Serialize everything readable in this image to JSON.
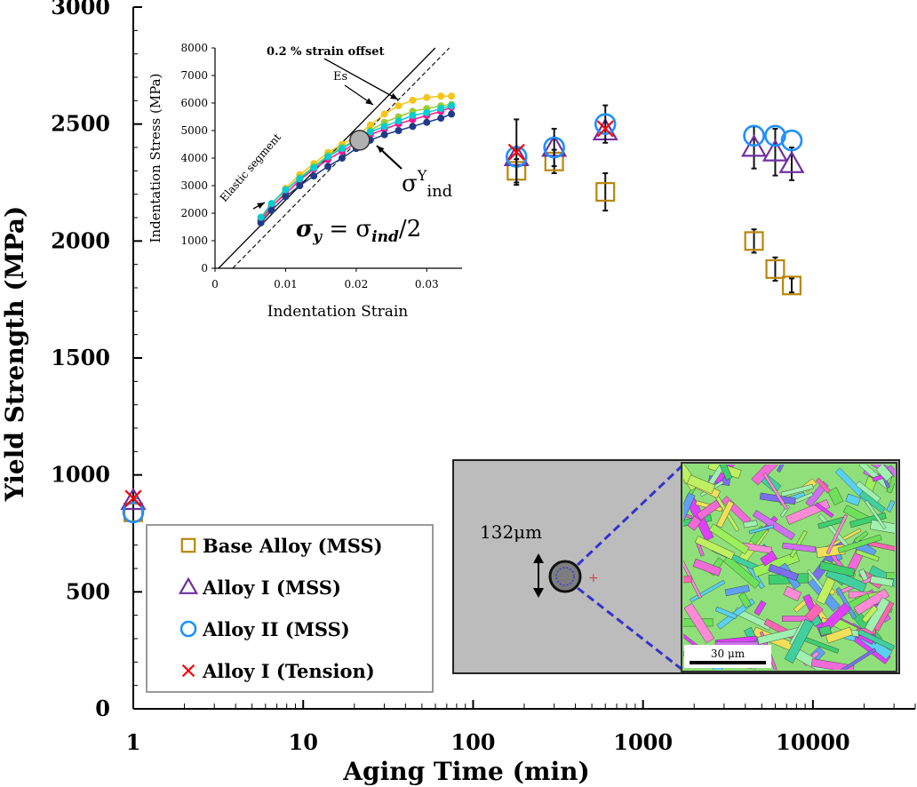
{
  "chart_data": {
    "type": "scatter",
    "title": "",
    "xlabel": "Aging Time (min)",
    "ylabel": "Yield Strength (MPa)",
    "x_scale": "log",
    "xlim": [
      1,
      40000
    ],
    "ylim": [
      0,
      3000
    ],
    "x_ticks": [
      {
        "value": 1,
        "label": "1"
      },
      {
        "value": 10,
        "label": "10"
      },
      {
        "value": 100,
        "label": "100"
      },
      {
        "value": 1000,
        "label": "1000"
      },
      {
        "value": 10000,
        "label": "10000"
      }
    ],
    "y_ticks": [
      {
        "value": 0,
        "label": "0"
      },
      {
        "value": 500,
        "label": "500"
      },
      {
        "value": 1000,
        "label": "1000"
      },
      {
        "value": 1500,
        "label": "1500"
      },
      {
        "value": 2000,
        "label": "2000"
      },
      {
        "value": 2500,
        "label": "2500"
      },
      {
        "value": 3000,
        "label": "3000"
      }
    ],
    "legend_position": "bottom-left",
    "series": [
      {
        "name": "Base Alloy (MSS)",
        "marker": "square",
        "color": "#b8860b",
        "points": [
          {
            "x": 1,
            "y": 840,
            "err": 0
          },
          {
            "x": 180,
            "y": 2300,
            "err": 50
          },
          {
            "x": 300,
            "y": 2340,
            "err": 50
          },
          {
            "x": 600,
            "y": 2210,
            "err": 80
          },
          {
            "x": 4500,
            "y": 2000,
            "err": 50
          },
          {
            "x": 6000,
            "y": 1880,
            "err": 50
          },
          {
            "x": 7500,
            "y": 1810,
            "err": 30
          }
        ]
      },
      {
        "name": "Alloy I (MSS)",
        "marker": "triangle",
        "color": "#7030a0",
        "points": [
          {
            "x": 1,
            "y": 890,
            "err": 0
          },
          {
            "x": 180,
            "y": 2360,
            "err": 0
          },
          {
            "x": 300,
            "y": 2400,
            "err": 0
          },
          {
            "x": 600,
            "y": 2470,
            "err": 0
          },
          {
            "x": 4500,
            "y": 2400,
            "err": 90
          },
          {
            "x": 6000,
            "y": 2380,
            "err": 100
          },
          {
            "x": 7500,
            "y": 2330,
            "err": 70
          }
        ]
      },
      {
        "name": "Alloy II (MSS)",
        "marker": "circle",
        "color": "#1e90ff",
        "points": [
          {
            "x": 1,
            "y": 840,
            "err": 0
          },
          {
            "x": 180,
            "y": 2360,
            "err": 0
          },
          {
            "x": 300,
            "y": 2400,
            "err": 80
          },
          {
            "x": 600,
            "y": 2500,
            "err": 80
          },
          {
            "x": 4500,
            "y": 2450,
            "err": 0
          },
          {
            "x": 6000,
            "y": 2450,
            "err": 0
          },
          {
            "x": 7500,
            "y": 2430,
            "err": 0
          }
        ]
      },
      {
        "name": "Alloy I (Tension)",
        "marker": "x",
        "color": "#ff0000",
        "points": [
          {
            "x": 1,
            "y": 900,
            "err": 0
          },
          {
            "x": 180,
            "y": 2380,
            "err": 140
          },
          {
            "x": 600,
            "y": 2480,
            "err": 0
          }
        ]
      }
    ],
    "inset_chart": {
      "type": "scatter",
      "xlabel": "Indentation Strain",
      "ylabel": "Indentation Stress (MPa)",
      "xlim": [
        0,
        0.035
      ],
      "ylim": [
        0,
        8000
      ],
      "x_ticks": [
        {
          "value": 0,
          "label": "0"
        },
        {
          "value": 0.01,
          "label": "0.01"
        },
        {
          "value": 0.02,
          "label": "0.02"
        },
        {
          "value": 0.03,
          "label": "0.03"
        }
      ],
      "y_ticks": [
        {
          "value": 0,
          "label": "0"
        },
        {
          "value": 1000,
          "label": "1000"
        },
        {
          "value": 2000,
          "label": "2000"
        },
        {
          "value": 3000,
          "label": "3000"
        },
        {
          "value": 4000,
          "label": "4000"
        },
        {
          "value": 5000,
          "label": "5000"
        },
        {
          "value": 6000,
          "label": "6000"
        },
        {
          "value": 7000,
          "label": "7000"
        },
        {
          "value": 8000,
          "label": "8000"
        }
      ],
      "annotations": {
        "offset_label": "0.2 % strain offset",
        "es_label": "Es",
        "elastic_label": "Elastic segment",
        "yield_sigma": "σ",
        "yield_sup": "Y",
        "yield_sub": "ind",
        "formula_lhs": "σ",
        "formula_lhs_sub": "y",
        "formula_rhs": " = σ",
        "formula_rhs_sub": "ind",
        "formula_tail": "/2"
      },
      "yield_point": {
        "x": 0.0205,
        "y": 4650
      },
      "curves": [
        {
          "color": "#f5c518",
          "points": [
            [
              0.0065,
              1800
            ],
            [
              0.008,
              2300
            ],
            [
              0.01,
              2900
            ],
            [
              0.012,
              3400
            ],
            [
              0.014,
              3800
            ],
            [
              0.016,
              4200
            ],
            [
              0.018,
              4500
            ],
            [
              0.02,
              4800
            ],
            [
              0.022,
              5200
            ],
            [
              0.024,
              5600
            ],
            [
              0.026,
              5900
            ],
            [
              0.028,
              6100
            ],
            [
              0.03,
              6200
            ],
            [
              0.032,
              6250
            ],
            [
              0.0335,
              6250
            ]
          ]
        },
        {
          "color": "#9acd32",
          "points": [
            [
              0.0065,
              1700
            ],
            [
              0.008,
              2200
            ],
            [
              0.01,
              2800
            ],
            [
              0.012,
              3300
            ],
            [
              0.014,
              3700
            ],
            [
              0.016,
              4100
            ],
            [
              0.018,
              4400
            ],
            [
              0.02,
              4650
            ],
            [
              0.022,
              5000
            ],
            [
              0.024,
              5300
            ],
            [
              0.026,
              5500
            ],
            [
              0.028,
              5700
            ],
            [
              0.03,
              5800
            ],
            [
              0.032,
              5900
            ],
            [
              0.0335,
              5950
            ]
          ]
        },
        {
          "color": "#ff1493",
          "points": [
            [
              0.0065,
              1750
            ],
            [
              0.008,
              2250
            ],
            [
              0.01,
              2700
            ],
            [
              0.012,
              3200
            ],
            [
              0.014,
              3600
            ],
            [
              0.016,
              3950
            ],
            [
              0.018,
              4250
            ],
            [
              0.02,
              4550
            ],
            [
              0.022,
              4850
            ],
            [
              0.024,
              5050
            ],
            [
              0.026,
              5250
            ],
            [
              0.028,
              5400
            ],
            [
              0.03,
              5550
            ],
            [
              0.032,
              5700
            ],
            [
              0.0335,
              5850
            ]
          ]
        },
        {
          "color": "#1e3a8a",
          "points": [
            [
              0.0065,
              1650
            ],
            [
              0.008,
              2100
            ],
            [
              0.01,
              2600
            ],
            [
              0.012,
              3000
            ],
            [
              0.014,
              3350
            ],
            [
              0.016,
              3700
            ],
            [
              0.018,
              4000
            ],
            [
              0.02,
              4350
            ],
            [
              0.022,
              4650
            ],
            [
              0.024,
              4850
            ],
            [
              0.026,
              5000
            ],
            [
              0.028,
              5150
            ],
            [
              0.03,
              5300
            ],
            [
              0.032,
              5450
            ],
            [
              0.0335,
              5600
            ]
          ]
        },
        {
          "color": "#00ced1",
          "points": [
            [
              0.0065,
              1850
            ],
            [
              0.008,
              2350
            ],
            [
              0.01,
              2850
            ],
            [
              0.012,
              3250
            ],
            [
              0.014,
              3650
            ],
            [
              0.016,
              4050
            ],
            [
              0.018,
              4350
            ],
            [
              0.02,
              4650
            ],
            [
              0.022,
              4950
            ],
            [
              0.024,
              5150
            ],
            [
              0.026,
              5350
            ],
            [
              0.028,
              5550
            ],
            [
              0.03,
              5650
            ],
            [
              0.032,
              5800
            ],
            [
              0.0335,
              5900
            ]
          ]
        }
      ]
    },
    "micrograph": {
      "size_label": "132μm",
      "scale_bar_label": "30 μm"
    }
  }
}
